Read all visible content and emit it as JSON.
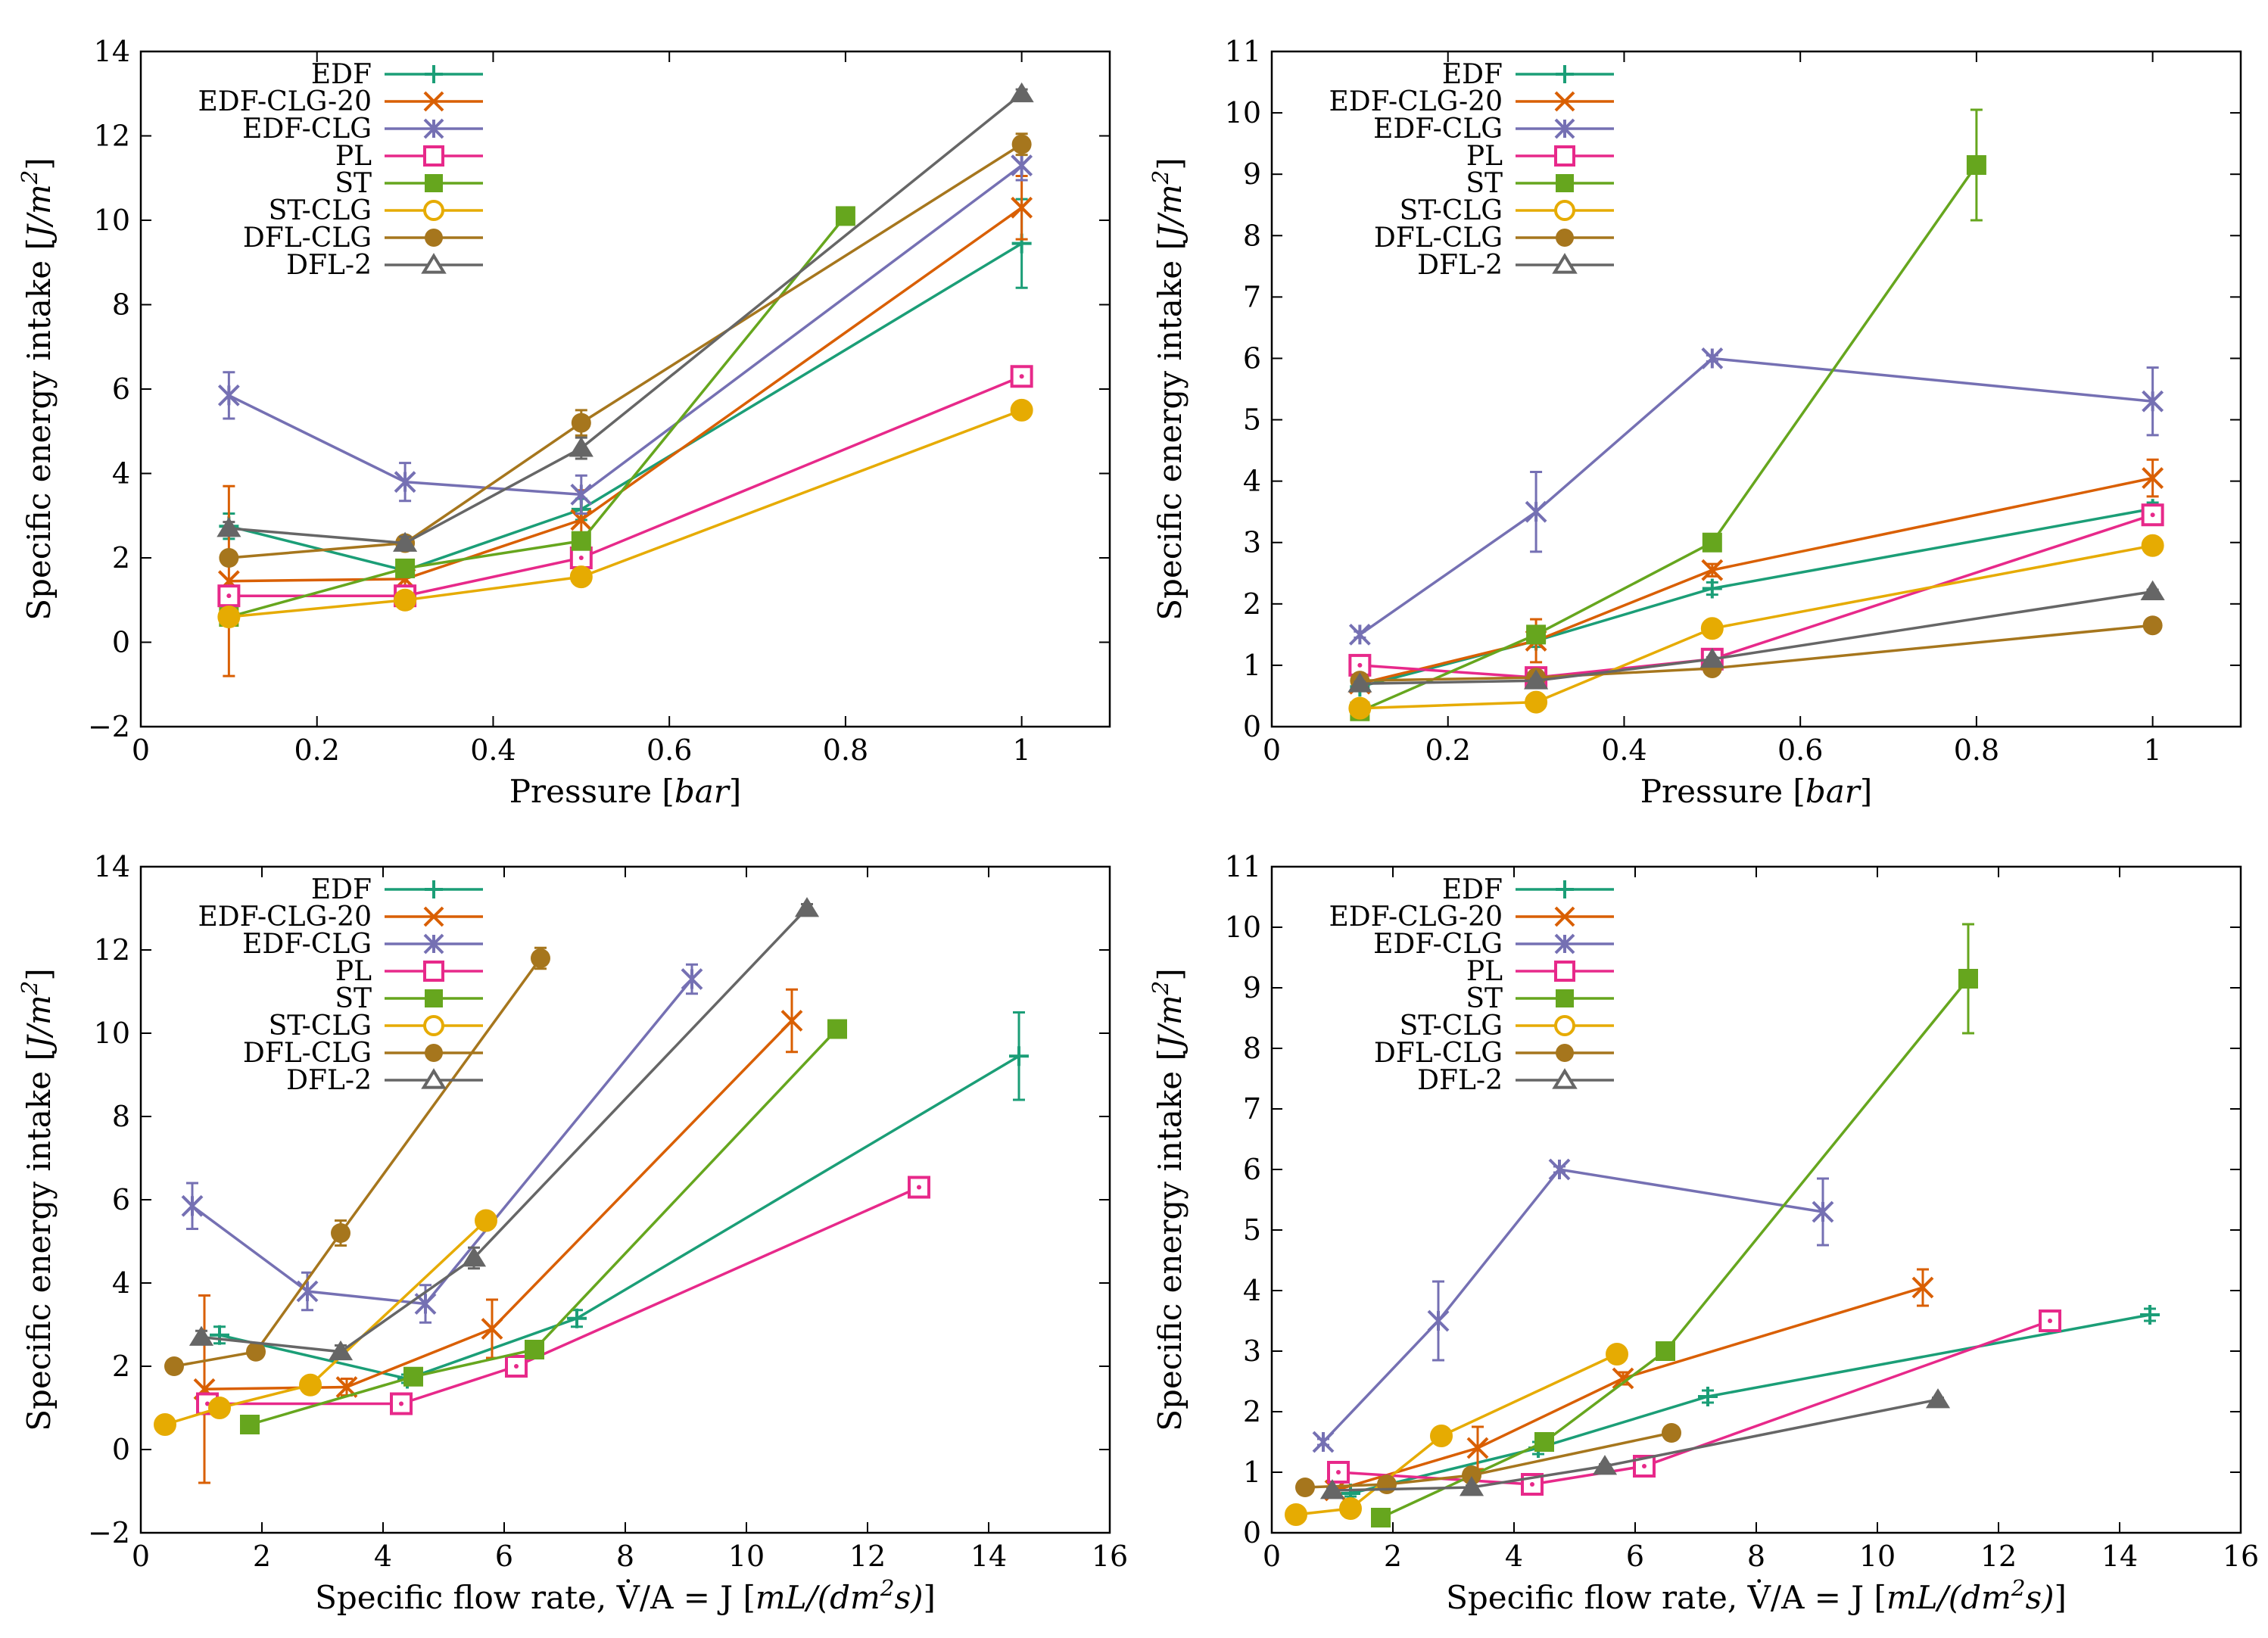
{
  "figure": {
    "x_label_pressure": "Pressure [bar]",
    "x_label_flow": "Specific flow rate, V̇/A = J [mL/(dm²s)]",
    "y_label": "Specific energy intake [J/m²]"
  },
  "series_styles": [
    {
      "name": "EDF",
      "color": "#1b9e77",
      "marker": "plus"
    },
    {
      "name": "EDF-CLG-20",
      "color": "#d95f02",
      "marker": "cross"
    },
    {
      "name": "EDF-CLG",
      "color": "#7570b3",
      "marker": "star"
    },
    {
      "name": "PL",
      "color": "#e7298a",
      "marker": "square-open"
    },
    {
      "name": "ST",
      "color": "#66a61e",
      "marker": "square-filled"
    },
    {
      "name": "ST-CLG",
      "color": "#e6ab02",
      "marker": "circle-open"
    },
    {
      "name": "DFL-CLG",
      "color": "#a6761d",
      "marker": "circle-filled"
    },
    {
      "name": "DFL-2",
      "color": "#666666",
      "marker": "triangle-open"
    }
  ],
  "chart_data": [
    {
      "type": "line",
      "position": "top-left",
      "xlabel": "Pressure [bar]",
      "ylabel": "Specific energy intake [J/m²]",
      "xlim": [
        0,
        1.1
      ],
      "ylim": [
        -2,
        14
      ],
      "xticks": [
        0,
        0.2,
        0.4,
        0.6,
        0.8,
        1
      ],
      "xtick_labels": [
        "0",
        "0.2",
        "0.4",
        "0.6",
        "0.8",
        "1"
      ],
      "yticks": [
        -2,
        0,
        2,
        4,
        6,
        8,
        10,
        12,
        14
      ],
      "ytick_labels": [
        "−2",
        "0",
        "2",
        "4",
        "6",
        "8",
        "10",
        "12",
        "14"
      ],
      "legend": "top-left",
      "series": [
        {
          "name": "EDF",
          "x": [
            0.1,
            0.3,
            0.5,
            1.0
          ],
          "y": [
            2.75,
            1.7,
            3.15,
            9.45
          ],
          "err": [
            0.3,
            0.15,
            0.25,
            1.05
          ]
        },
        {
          "name": "EDF-CLG-20",
          "x": [
            0.1,
            0.3,
            0.5,
            1.0
          ],
          "y": [
            1.45,
            1.5,
            2.9,
            10.3
          ],
          "err": [
            2.25,
            0.2,
            0.7,
            0.75
          ]
        },
        {
          "name": "EDF-CLG",
          "x": [
            0.1,
            0.3,
            0.5,
            1.0
          ],
          "y": [
            5.85,
            3.8,
            3.5,
            11.3
          ],
          "err": [
            0.55,
            0.45,
            0.45,
            0.35
          ]
        },
        {
          "name": "PL",
          "x": [
            0.1,
            0.3,
            0.5,
            1.0
          ],
          "y": [
            1.1,
            1.1,
            2.0,
            6.3
          ],
          "err": [
            0.15,
            0.1,
            0.15,
            0.15
          ]
        },
        {
          "name": "ST",
          "x": [
            0.1,
            0.3,
            0.5,
            0.8
          ],
          "y": [
            0.6,
            1.75,
            2.4,
            10.1
          ],
          "err": [
            0.1,
            0.1,
            0.1,
            0.1
          ]
        },
        {
          "name": "ST-CLG",
          "x": [
            0.1,
            0.3,
            0.5,
            1.0
          ],
          "y": [
            0.6,
            1.0,
            1.55,
            5.5
          ],
          "err": [
            0.05,
            0.05,
            0.1,
            0.1
          ]
        },
        {
          "name": "DFL-CLG",
          "x": [
            0.1,
            0.3,
            0.5,
            1.0
          ],
          "y": [
            2.0,
            2.35,
            5.2,
            11.8
          ],
          "err": [
            0.1,
            0.1,
            0.3,
            0.25
          ]
        },
        {
          "name": "DFL-2",
          "x": [
            0.1,
            0.3,
            0.5,
            1.0
          ],
          "y": [
            2.7,
            2.35,
            4.6,
            13.0
          ],
          "err": [
            0.15,
            0.15,
            0.25,
            0.1
          ]
        }
      ]
    },
    {
      "type": "line",
      "position": "top-right",
      "xlabel": "Pressure [bar]",
      "ylabel": "Specific energy intake [J/m²]",
      "xlim": [
        0,
        1.1
      ],
      "ylim": [
        0,
        11
      ],
      "xticks": [
        0,
        0.2,
        0.4,
        0.6,
        0.8,
        1
      ],
      "xtick_labels": [
        "0",
        "0.2",
        "0.4",
        "0.6",
        "0.8",
        "1"
      ],
      "yticks": [
        0,
        1,
        2,
        3,
        4,
        5,
        6,
        7,
        8,
        9,
        10,
        11
      ],
      "ytick_labels": [
        "0",
        "1",
        "2",
        "3",
        "4",
        "5",
        "6",
        "7",
        "8",
        "9",
        "10",
        "11"
      ],
      "legend": "top-left",
      "series": [
        {
          "name": "EDF",
          "x": [
            0.1,
            0.3,
            0.5,
            1.0
          ],
          "y": [
            0.65,
            1.4,
            2.25,
            3.55
          ],
          "err": [
            0.05,
            0.1,
            0.1,
            0.1
          ]
        },
        {
          "name": "EDF-CLG-20",
          "x": [
            0.1,
            0.3,
            0.5,
            1.0
          ],
          "y": [
            0.7,
            1.4,
            2.55,
            4.05
          ],
          "err": [
            0.05,
            0.35,
            0.1,
            0.3
          ]
        },
        {
          "name": "EDF-CLG",
          "x": [
            0.1,
            0.3,
            0.5,
            1.0
          ],
          "y": [
            1.5,
            3.5,
            6.0,
            5.3
          ],
          "err": [
            0.05,
            0.65,
            0.05,
            0.55
          ]
        },
        {
          "name": "PL",
          "x": [
            0.1,
            0.3,
            0.5,
            1.0
          ],
          "y": [
            1.0,
            0.8,
            1.1,
            3.45
          ],
          "err": [
            0.05,
            0.05,
            0.05,
            0.1
          ]
        },
        {
          "name": "ST",
          "x": [
            0.1,
            0.3,
            0.5,
            0.8
          ],
          "y": [
            0.25,
            1.5,
            3.0,
            9.15
          ],
          "err": [
            0.05,
            0.05,
            0.05,
            0.9
          ]
        },
        {
          "name": "ST-CLG",
          "x": [
            0.1,
            0.3,
            0.5,
            1.0
          ],
          "y": [
            0.3,
            0.4,
            1.6,
            2.95
          ],
          "err": [
            0.05,
            0.05,
            0.05,
            0.05
          ]
        },
        {
          "name": "DFL-CLG",
          "x": [
            0.1,
            0.3,
            0.5,
            1.0
          ],
          "y": [
            0.75,
            0.8,
            0.95,
            1.65
          ],
          "err": [
            0.03,
            0.03,
            0.03,
            0.03
          ]
        },
        {
          "name": "DFL-2",
          "x": [
            0.1,
            0.3,
            0.5,
            1.0
          ],
          "y": [
            0.7,
            0.75,
            1.1,
            2.2
          ],
          "err": [
            0.03,
            0.03,
            0.03,
            0.03
          ]
        }
      ]
    },
    {
      "type": "line",
      "position": "bottom-left",
      "xlabel": "Specific flow rate, V̇/A = J [mL/(dm²s)]",
      "ylabel": "Specific energy intake [J/m²]",
      "xlim": [
        0,
        16
      ],
      "ylim": [
        -2,
        14
      ],
      "xticks": [
        0,
        2,
        4,
        6,
        8,
        10,
        12,
        14,
        16
      ],
      "xtick_labels": [
        "0",
        "2",
        "4",
        "6",
        "8",
        "10",
        "12",
        "14",
        "16"
      ],
      "yticks": [
        -2,
        0,
        2,
        4,
        6,
        8,
        10,
        12,
        14
      ],
      "ytick_labels": [
        "−2",
        "0",
        "2",
        "4",
        "6",
        "8",
        "10",
        "12",
        "14"
      ],
      "legend": "top-left",
      "series": [
        {
          "name": "EDF",
          "x": [
            1.3,
            4.4,
            7.2,
            14.5
          ],
          "y": [
            2.75,
            1.7,
            3.15,
            9.45
          ],
          "err": [
            0.2,
            0.1,
            0.2,
            1.05
          ]
        },
        {
          "name": "EDF-CLG-20",
          "x": [
            1.05,
            3.4,
            5.8,
            10.75
          ],
          "y": [
            1.45,
            1.5,
            2.9,
            10.3
          ],
          "err": [
            2.25,
            0.2,
            0.7,
            0.75
          ]
        },
        {
          "name": "EDF-CLG",
          "x": [
            0.85,
            2.75,
            4.7,
            9.1
          ],
          "y": [
            5.85,
            3.8,
            3.5,
            11.3
          ],
          "err": [
            0.55,
            0.45,
            0.45,
            0.35
          ]
        },
        {
          "name": "PL",
          "x": [
            1.1,
            4.3,
            6.2,
            12.85
          ],
          "y": [
            1.1,
            1.1,
            2.0,
            6.3
          ],
          "err": [
            0.15,
            0.1,
            0.15,
            0.15
          ]
        },
        {
          "name": "ST",
          "x": [
            1.8,
            4.5,
            6.5,
            11.5
          ],
          "y": [
            0.6,
            1.75,
            2.4,
            10.1
          ],
          "err": [
            0.1,
            0.1,
            0.1,
            0.1
          ]
        },
        {
          "name": "ST-CLG",
          "x": [
            0.4,
            1.3,
            2.8,
            5.7
          ],
          "y": [
            0.6,
            1.0,
            1.55,
            5.5
          ],
          "err": [
            0.05,
            0.05,
            0.1,
            0.1
          ]
        },
        {
          "name": "DFL-CLG",
          "x": [
            0.55,
            1.9,
            3.3,
            6.6
          ],
          "y": [
            2.0,
            2.35,
            5.2,
            11.8
          ],
          "err": [
            0.1,
            0.1,
            0.3,
            0.25
          ]
        },
        {
          "name": "DFL-2",
          "x": [
            1.0,
            3.3,
            5.5,
            11.0
          ],
          "y": [
            2.7,
            2.35,
            4.6,
            13.0
          ],
          "err": [
            0.15,
            0.15,
            0.25,
            0.1
          ]
        }
      ]
    },
    {
      "type": "line",
      "position": "bottom-right",
      "xlabel": "Specific flow rate, V̇/A = J [mL/(dm²s)]",
      "ylabel": "Specific energy intake [J/m²]",
      "xlim": [
        0,
        16
      ],
      "ylim": [
        0,
        11
      ],
      "xticks": [
        0,
        2,
        4,
        6,
        8,
        10,
        12,
        14,
        16
      ],
      "xtick_labels": [
        "0",
        "2",
        "4",
        "6",
        "8",
        "10",
        "12",
        "14",
        "16"
      ],
      "yticks": [
        0,
        1,
        2,
        3,
        4,
        5,
        6,
        7,
        8,
        9,
        10,
        11
      ],
      "ytick_labels": [
        "0",
        "1",
        "2",
        "3",
        "4",
        "5",
        "6",
        "7",
        "8",
        "9",
        "10",
        "11"
      ],
      "legend": "top-left",
      "series": [
        {
          "name": "EDF",
          "x": [
            1.3,
            4.4,
            7.2,
            14.5
          ],
          "y": [
            0.65,
            1.4,
            2.25,
            3.6
          ],
          "err": [
            0.05,
            0.1,
            0.1,
            0.1
          ]
        },
        {
          "name": "EDF-CLG-20",
          "x": [
            1.05,
            3.4,
            5.8,
            10.75
          ],
          "y": [
            0.7,
            1.4,
            2.55,
            4.05
          ],
          "err": [
            0.05,
            0.35,
            0.1,
            0.3
          ]
        },
        {
          "name": "EDF-CLG",
          "x": [
            0.85,
            2.75,
            4.75,
            9.1
          ],
          "y": [
            1.5,
            3.5,
            6.0,
            5.3
          ],
          "err": [
            0.05,
            0.65,
            0.05,
            0.55
          ]
        },
        {
          "name": "PL",
          "x": [
            1.1,
            4.3,
            6.15,
            12.85
          ],
          "y": [
            1.0,
            0.8,
            1.1,
            3.5
          ],
          "err": [
            0.05,
            0.05,
            0.05,
            0.1
          ]
        },
        {
          "name": "ST",
          "x": [
            1.8,
            4.5,
            6.5,
            11.5
          ],
          "y": [
            0.25,
            1.5,
            3.0,
            9.15
          ],
          "err": [
            0.05,
            0.05,
            0.05,
            0.9
          ]
        },
        {
          "name": "ST-CLG",
          "x": [
            0.4,
            1.3,
            2.8,
            5.7
          ],
          "y": [
            0.3,
            0.4,
            1.6,
            2.95
          ],
          "err": [
            0.05,
            0.05,
            0.05,
            0.05
          ]
        },
        {
          "name": "DFL-CLG",
          "x": [
            0.55,
            1.9,
            3.3,
            6.6
          ],
          "y": [
            0.75,
            0.8,
            0.95,
            1.65
          ],
          "err": [
            0.03,
            0.03,
            0.03,
            0.03
          ]
        },
        {
          "name": "DFL-2",
          "x": [
            1.0,
            3.3,
            5.5,
            11.0
          ],
          "y": [
            0.7,
            0.75,
            1.1,
            2.2
          ],
          "err": [
            0.03,
            0.03,
            0.03,
            0.03
          ]
        }
      ]
    }
  ]
}
